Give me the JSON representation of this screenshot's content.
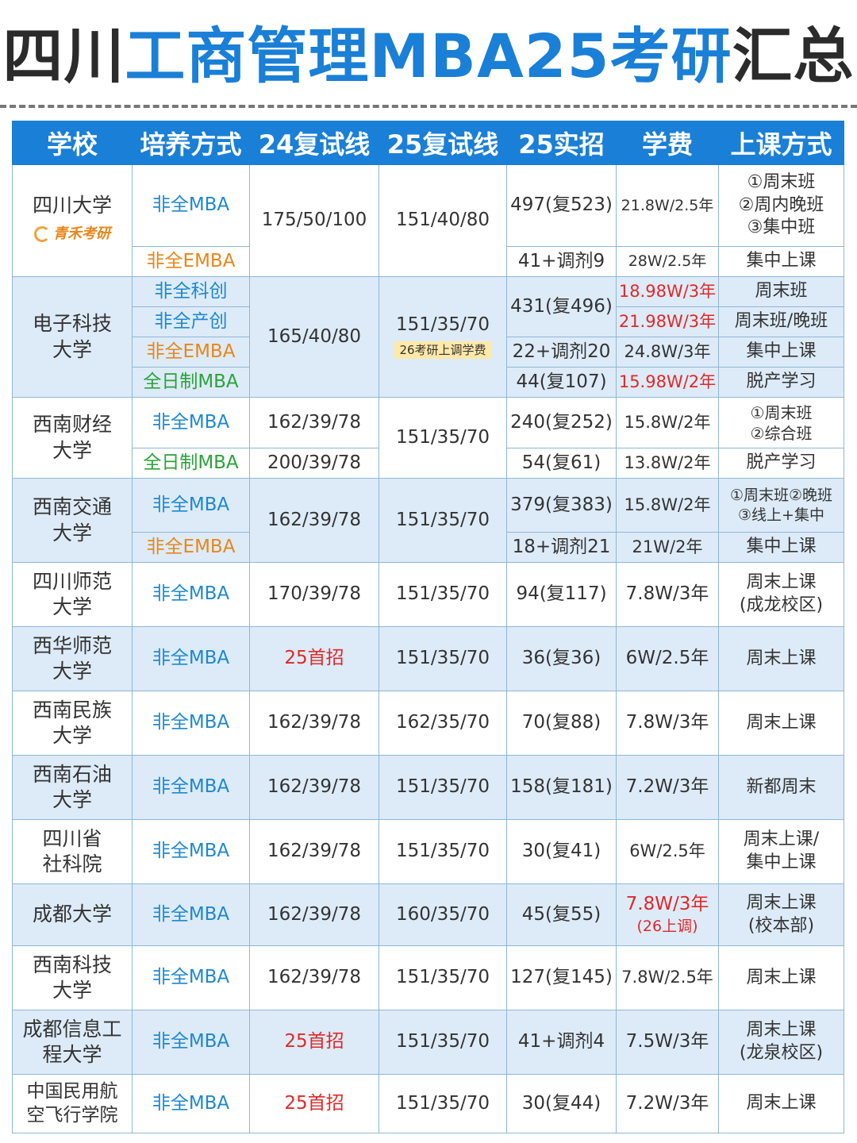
{
  "title": {
    "part1": "四川",
    "part2": "工商管理MBA25考研",
    "part3": "汇总"
  },
  "headers": [
    "学校",
    "培养方式",
    "24复试线",
    "25复试线",
    "25实招",
    "学费",
    "上课方式"
  ],
  "logo_text": "青禾考研",
  "rows": {
    "scu": {
      "school": "四川大学",
      "r1": {
        "mode": "非全MBA",
        "line24": "175/50/100",
        "line25": "151/40/80",
        "enroll": "497(复523)",
        "fee": "21.8W/2.5年",
        "cls1": "①周末班",
        "cls2": "②周内晚班",
        "cls3": "③集中班"
      },
      "r2": {
        "mode": "非全EMBA",
        "enroll": "41+调剂9",
        "fee": "28W/2.5年",
        "cls": "集中上课"
      }
    },
    "uestc": {
      "school1": "电子科技",
      "school2": "大学",
      "line24": "165/40/80",
      "line25": "151/35/70",
      "note": "26考研上调学费",
      "r1": {
        "mode": "非全科创",
        "enroll": "431(复496)",
        "fee": "18.98W/3年",
        "cls": "周末班"
      },
      "r2": {
        "mode": "非全产创",
        "fee": "21.98W/3年",
        "cls": "周末班/晚班"
      },
      "r3": {
        "mode": "非全EMBA",
        "enroll": "22+调剂20",
        "fee": "24.8W/3年",
        "cls": "集中上课"
      },
      "r4": {
        "mode": "全日制MBA",
        "enroll": "44(复107)",
        "fee": "15.98W/2年",
        "cls": "脱产学习"
      }
    },
    "swufe": {
      "school1": "西南财经",
      "school2": "大学",
      "line25": "151/35/70",
      "r1": {
        "mode": "非全MBA",
        "line24": "162/39/78",
        "enroll": "240(复252)",
        "fee": "15.8W/2年",
        "cls1": "①周末班",
        "cls2": "②综合班"
      },
      "r2": {
        "mode": "全日制MBA",
        "line24": "200/39/78",
        "enroll": "54(复61)",
        "fee": "13.8W/2年",
        "cls": "脱产学习"
      }
    },
    "swjtu": {
      "school1": "西南交通",
      "school2": "大学",
      "line24": "162/39/78",
      "line25": "151/35/70",
      "r1": {
        "mode": "非全MBA",
        "enroll": "379(复383)",
        "fee": "15.8W/2年",
        "cls1": "①周末班②晚班",
        "cls2": "③线上+集中"
      },
      "r2": {
        "mode": "非全EMBA",
        "enroll": "18+调剂21",
        "fee": "21W/2年",
        "cls": "集中上课"
      }
    },
    "sicnu": {
      "school1": "四川师范",
      "school2": "大学",
      "mode": "非全MBA",
      "line24": "170/39/78",
      "line25": "151/35/70",
      "enroll": "94(复117)",
      "fee": "7.8W/3年",
      "cls1": "周末上课",
      "cls2": "(成龙校区)"
    },
    "cwnu": {
      "school1": "西华师范",
      "school2": "大学",
      "mode": "非全MBA",
      "line24": "25首招",
      "line25": "151/35/70",
      "enroll": "36(复36)",
      "fee": "6W/2.5年",
      "cls": "周末上课"
    },
    "swun": {
      "school1": "西南民族",
      "school2": "大学",
      "mode": "非全MBA",
      "line24": "162/39/78",
      "line25": "162/35/70",
      "enroll": "70(复88)",
      "fee": "7.8W/3年",
      "cls": "周末上课"
    },
    "swpu": {
      "school1": "西南石油",
      "school2": "大学",
      "mode": "非全MBA",
      "line24": "162/39/78",
      "line25": "151/35/70",
      "enroll": "158(复181)",
      "fee": "7.2W/3年",
      "cls": "新都周末"
    },
    "sass": {
      "school1": "四川省",
      "school2": "社科院",
      "mode": "非全MBA",
      "line24": "162/39/78",
      "line25": "151/35/70",
      "enroll": "30(复41)",
      "fee": "6W/2.5年",
      "cls1": "周末上课/",
      "cls2": "集中上课"
    },
    "cdu": {
      "school": "成都大学",
      "mode": "非全MBA",
      "line24": "162/39/78",
      "line25": "160/35/70",
      "enroll": "45(复55)",
      "fee1": "7.8W/3年",
      "fee2": "(26上调)",
      "cls1": "周末上课",
      "cls2": "(校本部)"
    },
    "swust": {
      "school1": "西南科技",
      "school2": "大学",
      "mode": "非全MBA",
      "line24": "162/39/78",
      "line25": "151/35/70",
      "enroll": "127(复145)",
      "fee": "7.8W/2.5年",
      "cls": "周末上课"
    },
    "cuit": {
      "school1": "成都信息工",
      "school2": "程大学",
      "mode": "非全MBA",
      "line24": "25首招",
      "line25": "151/35/70",
      "enroll": "41+调剂4",
      "fee": "7.5W/3年",
      "cls1": "周末上课",
      "cls2": "(龙泉校区)"
    },
    "cafuc": {
      "school1": "中国民用航",
      "school2": "空飞行学院",
      "mode": "非全MBA",
      "line24": "25首招",
      "line25": "151/35/70",
      "enroll": "30(复44)",
      "fee": "7.2W/3年",
      "cls": "周末上课"
    }
  },
  "colors": {
    "accent": "#1a7fd6",
    "mode_blue": "#1e88d0",
    "mode_orange": "#e8861a",
    "mode_green": "#2aa33a",
    "red": "#e02828",
    "row_alt": "#ddebf8"
  }
}
